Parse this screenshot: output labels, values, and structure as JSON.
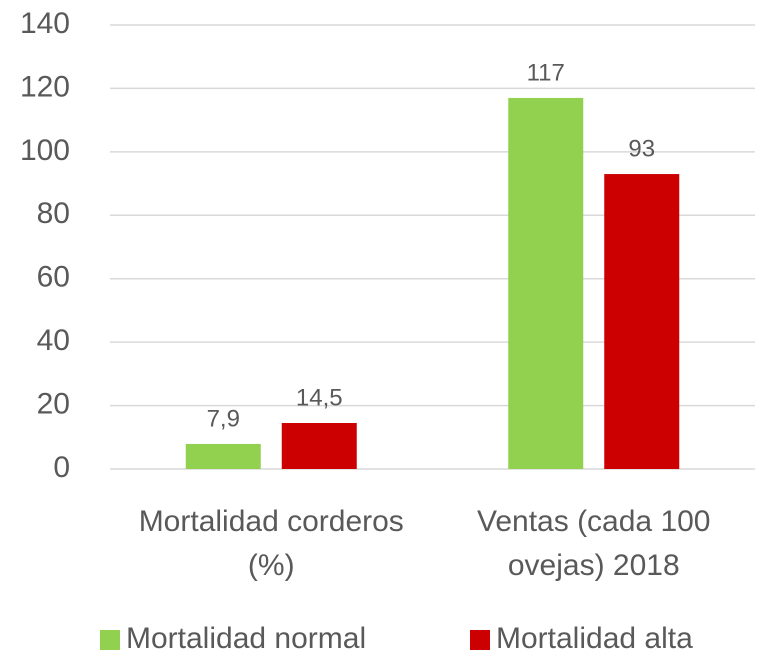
{
  "chart_data": {
    "type": "bar",
    "categories": [
      "Mortalidad corderos (%)",
      "Ventas (cada 100 ovejas) 2018"
    ],
    "series": [
      {
        "name": "Mortalidad normal",
        "color": "#92d050",
        "values": [
          7.9,
          117
        ],
        "value_labels": [
          "7,9",
          "117"
        ]
      },
      {
        "name": "Mortalidad alta",
        "color": "#cc0000",
        "values": [
          14.5,
          93
        ],
        "value_labels": [
          "14,5",
          "93"
        ]
      }
    ],
    "ylim": [
      0,
      140
    ],
    "yticks": [
      0,
      20,
      40,
      60,
      80,
      100,
      120,
      140
    ],
    "grid": true,
    "legend": "bottom"
  }
}
